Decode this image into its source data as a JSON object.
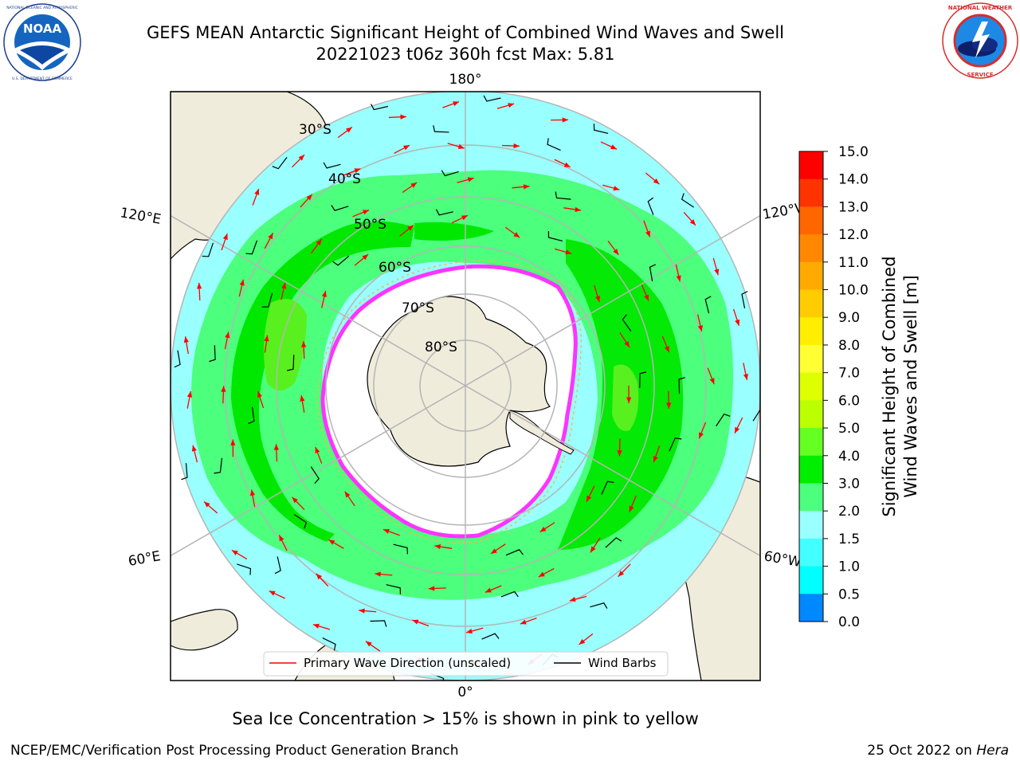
{
  "header": {
    "title_line1": "GEFS MEAN Antarctic Significant Height of Combined Wind Waves and Swell",
    "title_line2": "20221023 t06z 360h fcst   Max: 5.81"
  },
  "logos": {
    "left": {
      "name": "noaa-logo",
      "text": "NOAA",
      "ring_text": "NATIONAL OCEANIC AND ATMOSPHERIC ADMINISTRATION · U.S. DEPARTMENT OF COMMERCE"
    },
    "right": {
      "name": "nws-logo",
      "ring_text": "NATIONAL WEATHER SERVICE"
    }
  },
  "map": {
    "projection": "south-polar-stereographic",
    "longitude_labels": {
      "top": "180°",
      "bottom": "0°",
      "upper_left": "120°E",
      "lower_left": "60°E",
      "upper_right": "120°W",
      "lower_right": "60°W"
    },
    "latitude_labels": [
      "30°S",
      "40°S",
      "50°S",
      "60°S",
      "70°S",
      "80°S"
    ],
    "colors": {
      "land": "#efecdc",
      "ocean_2_3m": "#99ffff",
      "band_3_4m": "#4cff7c",
      "band_4_5m": "#00e800",
      "band_5_6m": "#58f01f",
      "ice_edge": "#ff33ff",
      "graticule": "#b5b5b5"
    },
    "legend": {
      "primary_wave_label": "Primary Wave Direction (unscaled)",
      "wind_barbs_label": "Wind Barbs",
      "primary_wave_color": "#ff0000",
      "wind_barbs_color": "#000000"
    }
  },
  "colorbar": {
    "label_line1": "Significant Height of Combined",
    "label_line2": "Wind Waves and Swell [m]",
    "ticks": [
      "15.0",
      "14.0",
      "13.0",
      "12.0",
      "11.0",
      "10.0",
      "9.0",
      "8.0",
      "7.0",
      "6.0",
      "5.0",
      "4.0",
      "3.0",
      "2.0",
      "1.5",
      "1.0",
      "0.5",
      "0.0"
    ],
    "colors_top_to_bottom": [
      "#ff0000",
      "#ff3300",
      "#ff6600",
      "#ff8800",
      "#ffaa00",
      "#ffcc00",
      "#ffee00",
      "#ffff33",
      "#ddff00",
      "#bbff00",
      "#66ff22",
      "#00ee00",
      "#4cff7c",
      "#99ffff",
      "#44ffff",
      "#00ffff",
      "#0088ff",
      "#0000ff"
    ]
  },
  "note": "Sea Ice Concentration > 15% is shown in pink to yellow",
  "footer": {
    "left": "NCEP/EMC/Verification Post Processing Product Generation Branch",
    "date": "25 Oct 2022 on ",
    "host": "Hera"
  }
}
